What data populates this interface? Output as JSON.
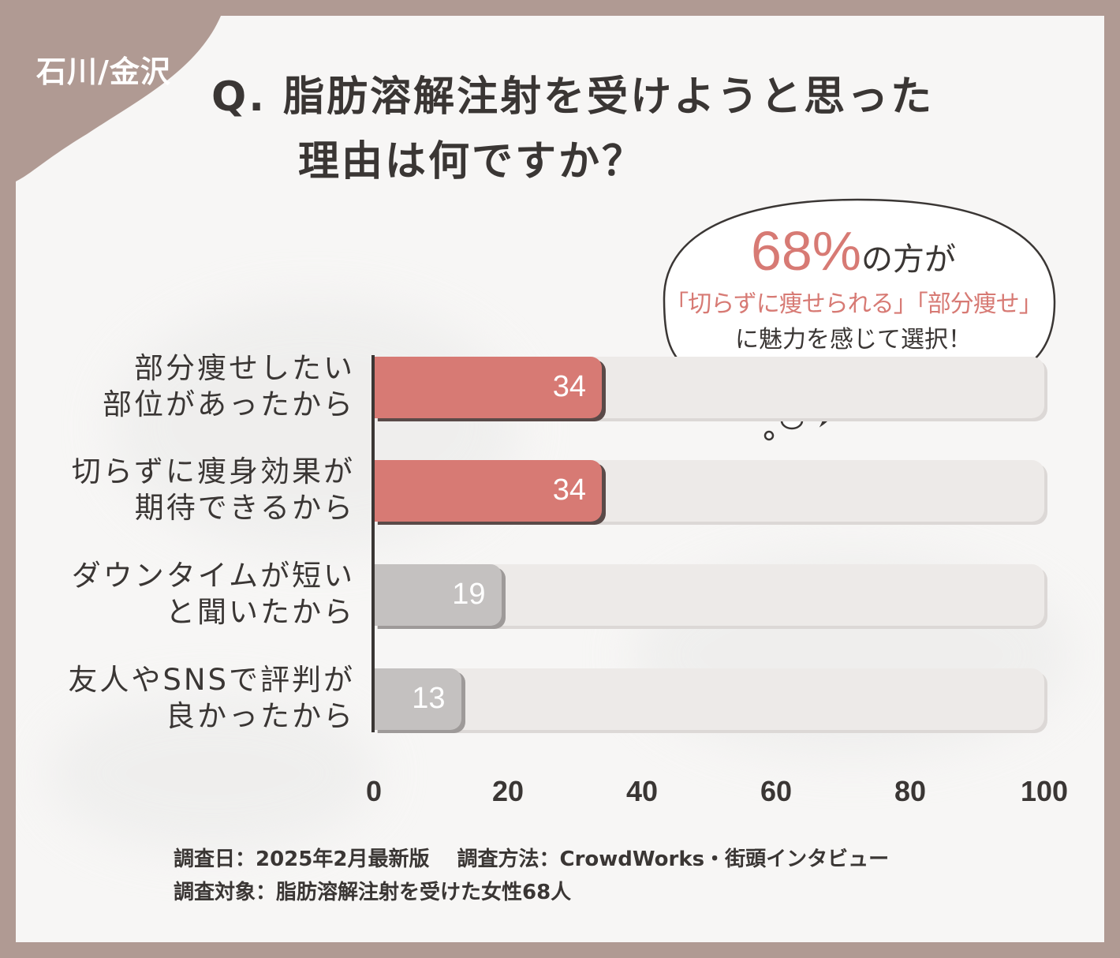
{
  "region": "石川/金沢",
  "question": {
    "line1": "Q. 脂肪溶解注射を受けようと思った",
    "line2": "　　理由は何ですか？"
  },
  "callout": {
    "percent": "68%",
    "percent_suffix": "の方が",
    "line2": "「切らずに痩せられる」「部分痩せ」",
    "line3": "に魅力を感じて選択！"
  },
  "chart_data": {
    "type": "bar",
    "orientation": "horizontal",
    "categories": [
      "部分痩せしたい\n部位があったから",
      "切らずに痩身効果が\n期待できるから",
      "ダウンタイムが短い\nと聞いたから",
      "友人やSNSで評判が\n良かったから"
    ],
    "values": [
      34,
      34,
      19,
      13
    ],
    "value_labels": [
      "34",
      "34",
      "19",
      "13"
    ],
    "xlim": [
      0,
      100
    ],
    "ticks": [
      "0",
      "20",
      "40",
      "60",
      "80",
      "100"
    ],
    "highlight_color": "#d77a74",
    "default_color": "#c4c1c0",
    "track_color": "#edeae8",
    "grid": false
  },
  "footer": {
    "line1": "調査日：2025年2月最新版　 調査方法：CrowdWorks・街頭インタビュー",
    "line2": "調査対象：脂肪溶解注射を受けた女性68人"
  }
}
